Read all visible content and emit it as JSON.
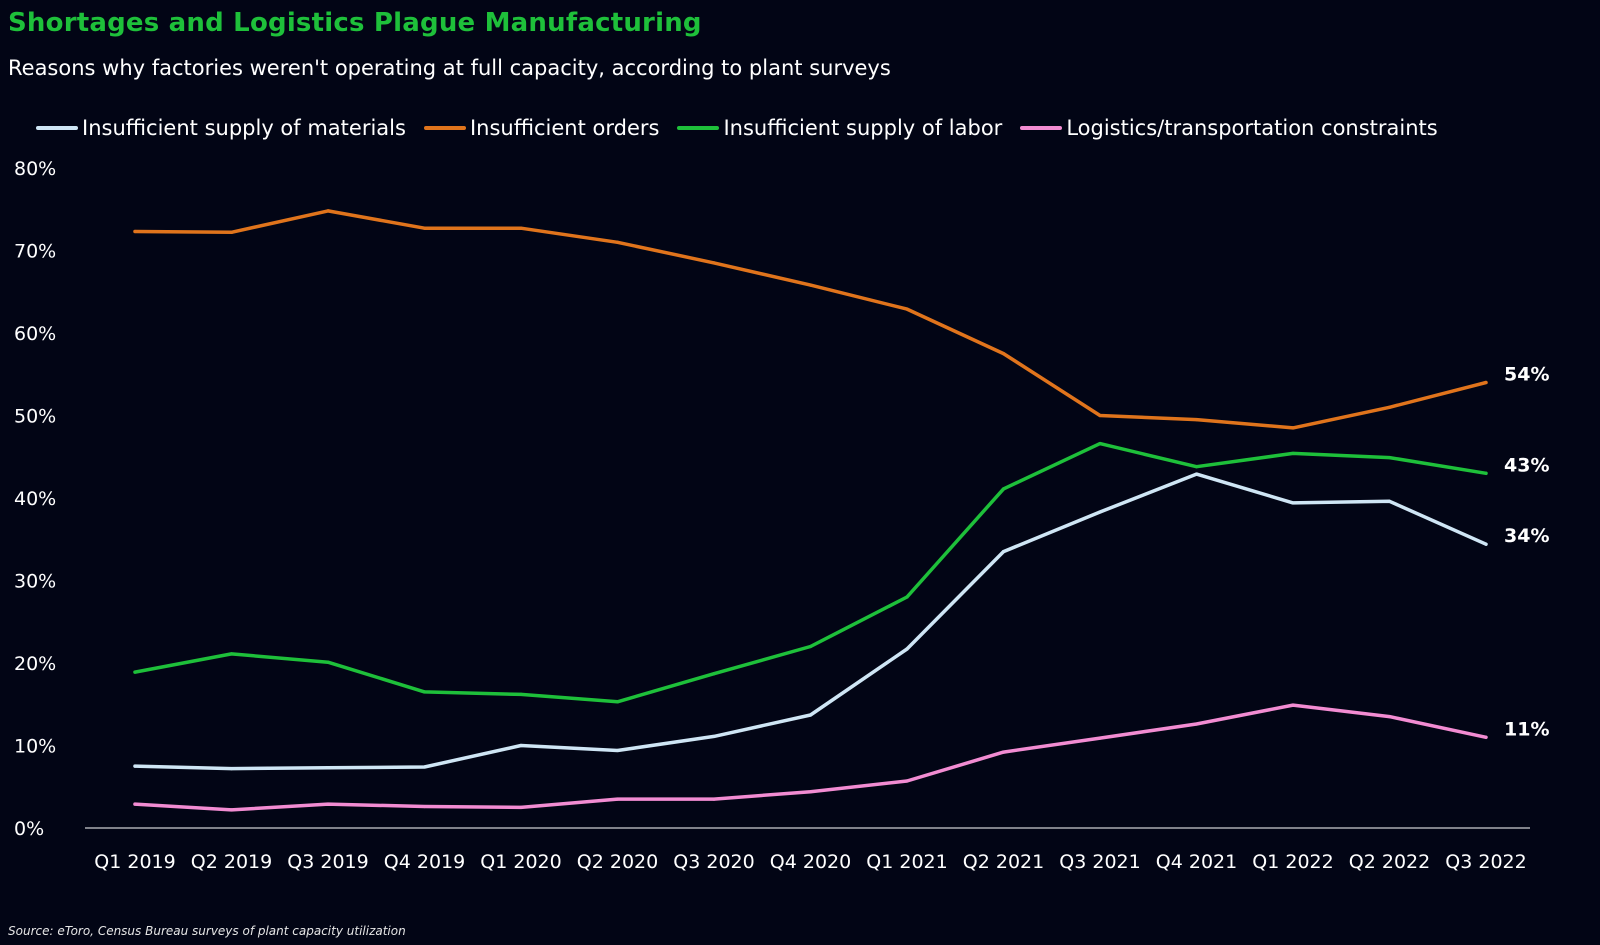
{
  "title": "Shortages and Logistics Plague Manufacturing",
  "subtitle": "Reasons why factories weren't operating at full capacity, according to plant surveys",
  "source": "Source: eToro, Census Bureau surveys of plant capacity utilization",
  "chart_data": {
    "type": "line",
    "title": "Shortages and Logistics Plague Manufacturing",
    "subtitle": "Reasons why factories weren't operating at full capacity, according to plant surveys",
    "xlabel": "",
    "ylabel": "",
    "ylim": [
      0,
      80
    ],
    "yticks": [
      0,
      10,
      20,
      30,
      40,
      50,
      60,
      70,
      80
    ],
    "ytick_labels": [
      "0%",
      "10%",
      "20%",
      "30%",
      "40%",
      "50%",
      "60%",
      "70%",
      "80%"
    ],
    "grid": false,
    "legend_position": "top-left",
    "categories": [
      "Q1 2019",
      "Q2 2019",
      "Q3 2019",
      "Q4 2019",
      "Q1 2020",
      "Q2 2020",
      "Q3 2020",
      "Q4 2020",
      "Q1 2021",
      "Q2 2021",
      "Q3 2021",
      "Q4 2021",
      "Q1 2022",
      "Q2 2022",
      "Q3 2022"
    ],
    "series": [
      {
        "name": "Insufficient supply of materials",
        "color": "#cfe6f5",
        "values": [
          7.5,
          7.2,
          7.3,
          7.4,
          10,
          9.4,
          11.1,
          13.7,
          21.7,
          33.5,
          38.3,
          42.9,
          39.4,
          39.6,
          34.4
        ],
        "end_label": "34%"
      },
      {
        "name": "Insufficient orders",
        "color": "#e0741c",
        "values": [
          72.3,
          72.2,
          74.8,
          72.7,
          72.7,
          71,
          68.5,
          65.8,
          62.9,
          57.5,
          50,
          49.5,
          48.5,
          51,
          54
        ],
        "end_label": "54%"
      },
      {
        "name": "Insufficient supply of labor",
        "color": "#1ec03a",
        "values": [
          18.9,
          21.1,
          20.1,
          16.5,
          16.2,
          15.3,
          18.7,
          22,
          28,
          41.1,
          46.6,
          43.8,
          45.4,
          44.9,
          43
        ],
        "end_label": "43%"
      },
      {
        "name": "Logistics/transportation constraints",
        "color": "#f28cd2",
        "values": [
          2.9,
          2.2,
          2.9,
          2.6,
          2.5,
          3.5,
          3.5,
          4.4,
          5.7,
          9.2,
          10.9,
          12.6,
          14.9,
          13.5,
          11
        ],
        "end_label": "11%"
      }
    ],
    "axis_color": "#ffffff"
  }
}
